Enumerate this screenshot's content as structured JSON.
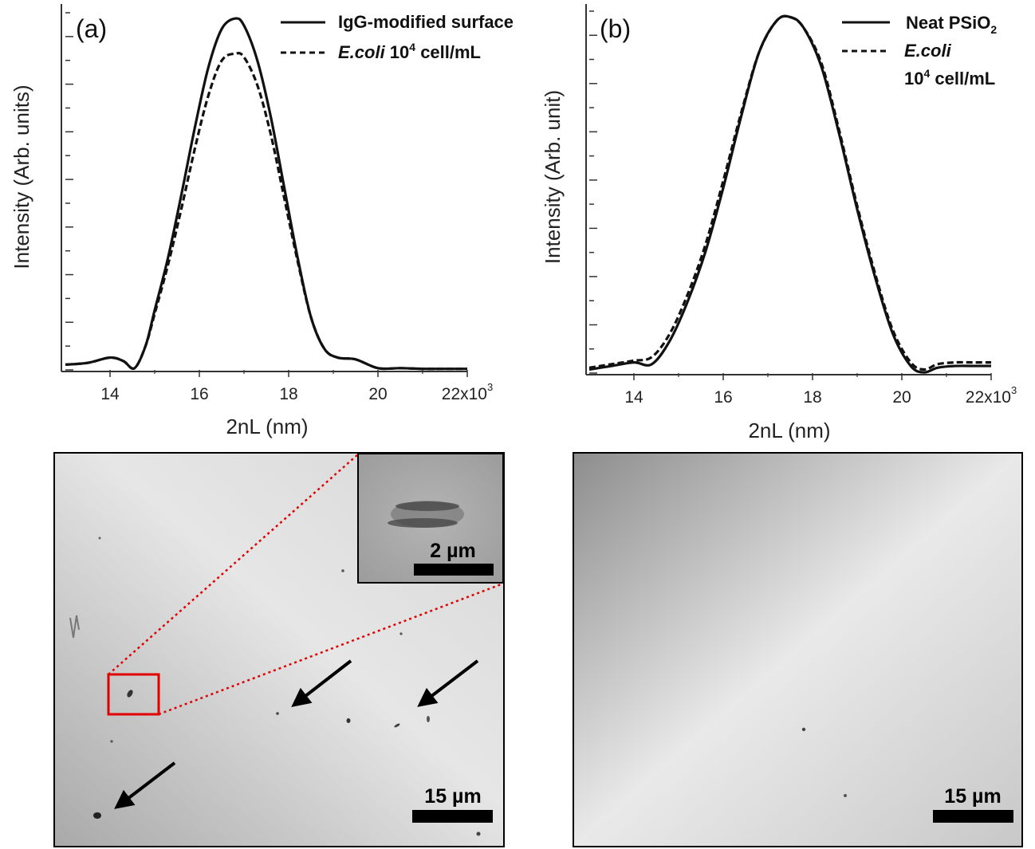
{
  "chart_data": [
    {
      "type": "line",
      "panel_label": "(a)",
      "xlabel": "2nL (nm)",
      "ylabel": "Intensity (Arb. units)",
      "x_ticks": [
        "14",
        "16",
        "18",
        "20",
        "22x10"
      ],
      "x_tick_exponent": "3",
      "x_tick_values": [
        14000,
        16000,
        18000,
        20000,
        22000
      ],
      "xlim": [
        13000,
        22000
      ],
      "ylim": [
        0,
        1.03
      ],
      "y_tick_count": 16,
      "legend_position": "top-right",
      "grid": false,
      "series": [
        {
          "name": "IgG-modified surface",
          "style": "solid",
          "x": [
            13000,
            13500,
            14000,
            14300,
            14550,
            14800,
            15000,
            15300,
            15600,
            15900,
            16200,
            16500,
            16800,
            17000,
            17300,
            17600,
            17900,
            18200,
            18500,
            18800,
            19100,
            19500,
            20000,
            20500,
            21000,
            21500,
            22000
          ],
          "y": [
            0.015,
            0.02,
            0.035,
            0.025,
            0.005,
            0.07,
            0.17,
            0.32,
            0.5,
            0.69,
            0.86,
            0.97,
            1.0,
            0.98,
            0.88,
            0.72,
            0.52,
            0.32,
            0.15,
            0.06,
            0.035,
            0.03,
            0.005,
            0.005,
            0.003,
            0.003,
            0.003
          ]
        },
        {
          "name": "E.coli 10⁴ cell/mL",
          "style": "dashed",
          "x": [
            13000,
            13500,
            14000,
            14300,
            14550,
            14800,
            15000,
            15300,
            15600,
            15900,
            16200,
            16500,
            16800,
            17000,
            17300,
            17600,
            17900,
            18200,
            18500,
            18800,
            19100,
            19500,
            20000,
            20500,
            21000,
            21500,
            22000
          ],
          "y": [
            0.015,
            0.02,
            0.035,
            0.025,
            0.005,
            0.07,
            0.16,
            0.3,
            0.46,
            0.63,
            0.78,
            0.88,
            0.9,
            0.89,
            0.81,
            0.67,
            0.49,
            0.31,
            0.15,
            0.06,
            0.035,
            0.03,
            0.005,
            0.005,
            0.003,
            0.003,
            0.003
          ]
        }
      ]
    },
    {
      "type": "line",
      "panel_label": "(b)",
      "xlabel": "2nL (nm)",
      "ylabel": "Intensity (Arb. unit)",
      "x_ticks": [
        "14",
        "16",
        "18",
        "20",
        "22x10"
      ],
      "x_tick_exponent": "3",
      "x_tick_values": [
        14000,
        16000,
        18000,
        20000,
        22000
      ],
      "xlim": [
        13000,
        22000
      ],
      "ylim": [
        0,
        1.03
      ],
      "y_tick_count": 16,
      "legend_position": "top-right",
      "grid": false,
      "series": [
        {
          "name": "Neat PSiO₂",
          "style": "solid",
          "x": [
            13000,
            13500,
            14000,
            14400,
            14800,
            15200,
            15600,
            16000,
            16400,
            16800,
            17200,
            17500,
            17800,
            18200,
            18600,
            19000,
            19400,
            19800,
            20200,
            20500,
            20800,
            21200,
            21600,
            22000
          ],
          "y": [
            0.01,
            0.02,
            0.03,
            0.025,
            0.09,
            0.2,
            0.34,
            0.52,
            0.72,
            0.9,
            0.99,
            1.0,
            0.97,
            0.86,
            0.67,
            0.46,
            0.27,
            0.11,
            0.02,
            0.002,
            0.015,
            0.02,
            0.02,
            0.02
          ]
        },
        {
          "name": "E.coli 10⁴ cell/mL",
          "style": "dashed",
          "x": [
            13000,
            13500,
            14000,
            14400,
            14800,
            15200,
            15600,
            16000,
            16400,
            16800,
            17200,
            17500,
            17800,
            18200,
            18600,
            19000,
            19400,
            19800,
            20200,
            20500,
            20800,
            21200,
            21600,
            22000
          ],
          "y": [
            0.015,
            0.025,
            0.035,
            0.045,
            0.11,
            0.22,
            0.36,
            0.54,
            0.73,
            0.9,
            0.99,
            1.0,
            0.97,
            0.87,
            0.68,
            0.47,
            0.28,
            0.12,
            0.03,
            0.01,
            0.025,
            0.03,
            0.03,
            0.03
          ]
        }
      ]
    }
  ],
  "micrographs": {
    "left_scale": "15 µm",
    "left_inset_scale": "2 µm",
    "right_scale": "15 µm"
  },
  "colors": {
    "line": "#111111",
    "zoom_box": "#e00000",
    "zoom_lines": "#e00000"
  }
}
